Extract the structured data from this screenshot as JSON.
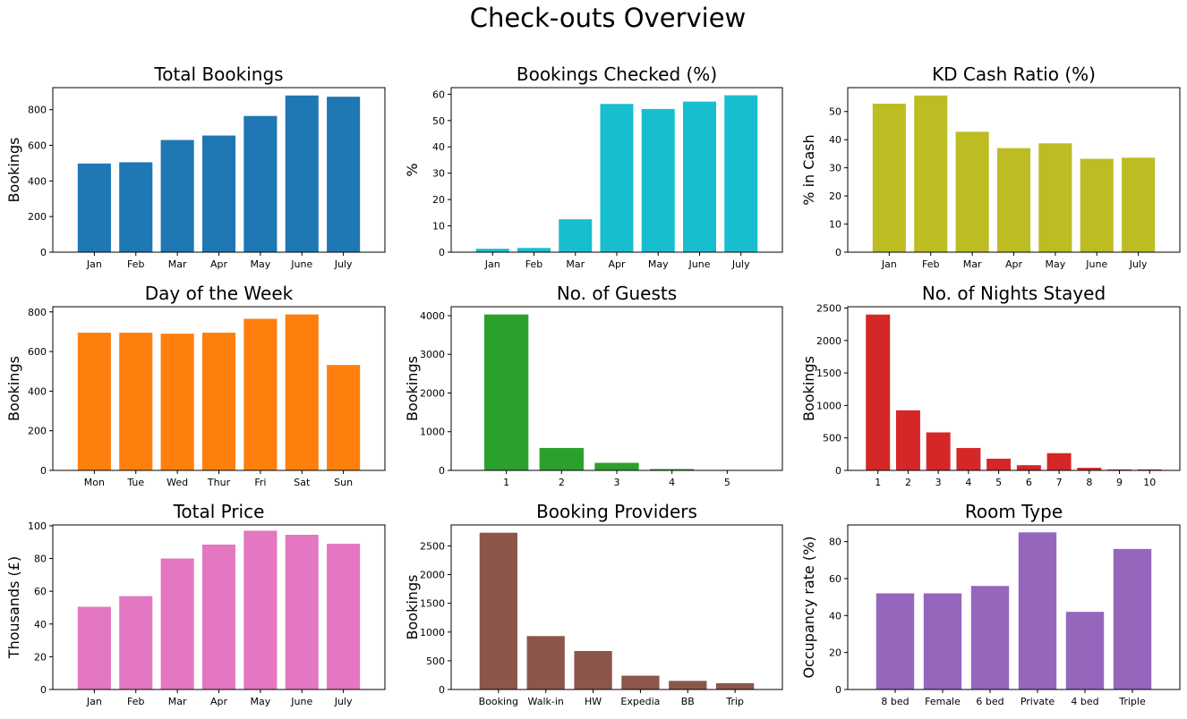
{
  "figure": {
    "title": "Check-outs Overview"
  },
  "chart_data": [
    {
      "type": "bar",
      "title": "Total Bookings",
      "ylabel": "Bookings",
      "color": "#1f77b4",
      "categories": [
        "Jan",
        "Feb",
        "Mar",
        "Apr",
        "May",
        "June",
        "July"
      ],
      "values": [
        498,
        505,
        630,
        655,
        765,
        880,
        873
      ],
      "ylim": [
        0,
        924
      ],
      "yticks": [
        0,
        200,
        400,
        600,
        800
      ]
    },
    {
      "type": "bar",
      "title": "Bookings Checked (%)",
      "ylabel": "%",
      "color": "#17becf",
      "categories": [
        "Jan",
        "Feb",
        "Mar",
        "Apr",
        "May",
        "June",
        "July"
      ],
      "values": [
        1.3,
        1.6,
        12.5,
        56.3,
        54.4,
        57.2,
        59.6
      ],
      "ylim": [
        0,
        62.5
      ],
      "yticks": [
        0,
        10,
        20,
        30,
        40,
        50,
        60
      ]
    },
    {
      "type": "bar",
      "title": "KD Cash Ratio (%)",
      "ylabel": "% in Cash",
      "color": "#bcbd22",
      "categories": [
        "Jan",
        "Feb",
        "Mar",
        "Apr",
        "May",
        "June",
        "July"
      ],
      "values": [
        52.8,
        55.7,
        42.8,
        37,
        38.7,
        33.2,
        33.6
      ],
      "ylim": [
        0,
        58.5
      ],
      "yticks": [
        0,
        10,
        20,
        30,
        40,
        50
      ]
    },
    {
      "type": "bar",
      "title": "Day of the Week",
      "ylabel": "Bookings",
      "color": "#ff7f0e",
      "categories": [
        "Mon",
        "Tue",
        "Wed",
        "Thur",
        "Fri",
        "Sat",
        "Sun"
      ],
      "values": [
        695,
        695,
        690,
        695,
        765,
        787,
        532
      ],
      "ylim": [
        0,
        826
      ],
      "yticks": [
        0,
        200,
        400,
        600,
        800
      ]
    },
    {
      "type": "bar",
      "title": "No. of Guests",
      "ylabel": "Bookings",
      "color": "#2ca02c",
      "categories": [
        "1",
        "2",
        "3",
        "4",
        "5"
      ],
      "values": [
        4030,
        580,
        195,
        35,
        5
      ],
      "ylim": [
        0,
        4230
      ],
      "yticks": [
        0,
        1000,
        2000,
        3000,
        4000
      ]
    },
    {
      "type": "bar",
      "title": "No. of Nights Stayed",
      "ylabel": "Bookings",
      "color": "#d62728",
      "categories": [
        "1",
        "2",
        "3",
        "4",
        "5",
        "6",
        "7",
        "8",
        "9",
        "10"
      ],
      "values": [
        2400,
        925,
        585,
        345,
        180,
        80,
        265,
        40,
        15,
        15
      ],
      "ylim": [
        0,
        2520
      ],
      "yticks": [
        0,
        500,
        1000,
        1500,
        2000,
        2500
      ]
    },
    {
      "type": "bar",
      "title": "Total Price",
      "ylabel": "Thousands (£)",
      "color": "#e377c2",
      "categories": [
        "Jan",
        "Feb",
        "Mar",
        "Apr",
        "May",
        "June",
        "July"
      ],
      "values": [
        50.5,
        57,
        80,
        88.5,
        97,
        94.5,
        89
      ],
      "ylim": [
        0,
        100.5
      ],
      "yticks": [
        0,
        20,
        40,
        60,
        80,
        100
      ]
    },
    {
      "type": "bar",
      "title": "Booking Providers",
      "ylabel": "Bookings",
      "color": "#8c564b",
      "categories": [
        "Booking",
        "Walk-in",
        "HW",
        "Expedia",
        "BB",
        "Trip"
      ],
      "values": [
        2730,
        930,
        670,
        240,
        150,
        110
      ],
      "ylim": [
        0,
        2865
      ],
      "yticks": [
        0,
        500,
        1000,
        1500,
        2000,
        2500
      ]
    },
    {
      "type": "bar",
      "title": "Room Type",
      "ylabel": "Occupancy rate (%)",
      "color": "#9467bd",
      "categories": [
        "8 bed",
        "Female",
        "6 bed",
        "Private",
        "4 bed",
        "Triple"
      ],
      "values": [
        52,
        52,
        56,
        85,
        42,
        76
      ],
      "ylim": [
        0,
        89
      ],
      "yticks": [
        0,
        20,
        40,
        60,
        80
      ]
    }
  ]
}
